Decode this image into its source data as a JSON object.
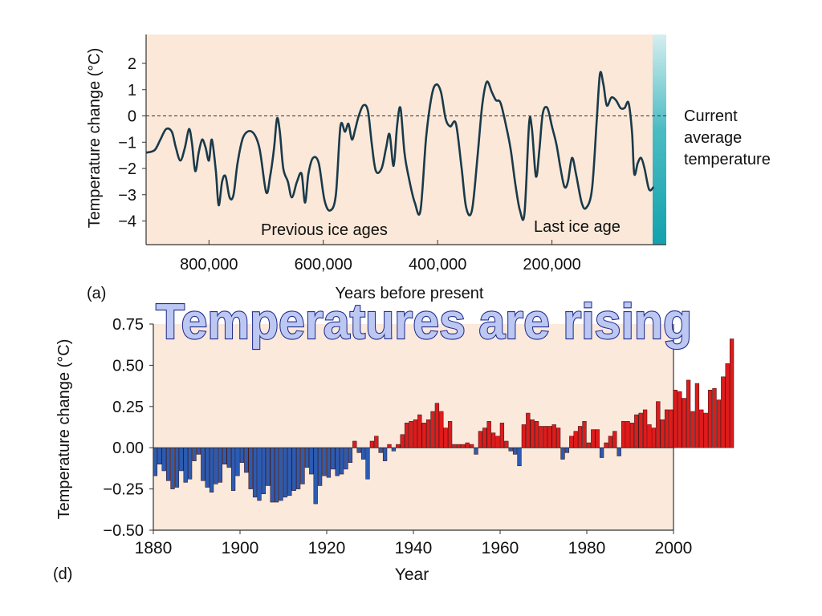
{
  "headline": "Temperatures are rising",
  "colors": {
    "panel_a_bg": "#fbe8d8",
    "panel_d_bg": "#fbe9dc",
    "curve": "#1a3a4a",
    "current_band": "#1fa8b2",
    "warm_bar": "#dd1c1c",
    "cool_bar": "#2d5bb0"
  },
  "chart_data": [
    {
      "type": "line",
      "panel_label": "(a)",
      "xlabel": "Years before present",
      "ylabel": "Temperature change (°C)",
      "xlim": [
        910000,
        0
      ],
      "ylim": [
        -4.9,
        3.1
      ],
      "x_ticks": [
        800000,
        600000,
        400000,
        200000
      ],
      "x_tick_labels": [
        "800,000",
        "600,000",
        "400,000",
        "200,000"
      ],
      "y_ticks": [
        2,
        1,
        0,
        -1,
        -2,
        -3,
        -4
      ],
      "y_tick_labels": [
        "2",
        "1",
        "0",
        "−1",
        "−2",
        "−3",
        "−4"
      ],
      "reference_line": {
        "y": 0,
        "style": "dashed",
        "label": [
          "Current",
          "average",
          "temperature"
        ]
      },
      "annotations": [
        "Previous ice ages",
        "Last ice age"
      ],
      "series": [
        {
          "points": [
            [
              910000,
              -1.4
            ],
            [
              895000,
              -1.3
            ],
            [
              885000,
              -0.9
            ],
            [
              875000,
              -0.5
            ],
            [
              865000,
              -0.6
            ],
            [
              858000,
              -1.2
            ],
            [
              850000,
              -1.7
            ],
            [
              842000,
              -1.2
            ],
            [
              835000,
              -0.5
            ],
            [
              830000,
              -1.0
            ],
            [
              824000,
              -2.1
            ],
            [
              818000,
              -1.4
            ],
            [
              812000,
              -0.9
            ],
            [
              806000,
              -1.2
            ],
            [
              800000,
              -1.7
            ],
            [
              795000,
              -0.9
            ],
            [
              788000,
              -2.1
            ],
            [
              783000,
              -3.4
            ],
            [
              777000,
              -2.5
            ],
            [
              771000,
              -2.3
            ],
            [
              764000,
              -3.1
            ],
            [
              757000,
              -3.0
            ],
            [
              750000,
              -1.8
            ],
            [
              740000,
              -0.8
            ],
            [
              725000,
              -0.6
            ],
            [
              712000,
              -1.2
            ],
            [
              700000,
              -2.9
            ],
            [
              693000,
              -2.3
            ],
            [
              686000,
              -1.2
            ],
            [
              681000,
              -0.1
            ],
            [
              676000,
              -0.6
            ],
            [
              670000,
              -2.0
            ],
            [
              662000,
              -2.5
            ],
            [
              655000,
              -3.1
            ],
            [
              646000,
              -2.5
            ],
            [
              638000,
              -2.2
            ],
            [
              632000,
              -3.3
            ],
            [
              626000,
              -2.2
            ],
            [
              618000,
              -1.6
            ],
            [
              608000,
              -1.8
            ],
            [
              598000,
              -3.2
            ],
            [
              588000,
              -3.6
            ],
            [
              578000,
              -3.0
            ],
            [
              570000,
              -0.4
            ],
            [
              562000,
              -0.6
            ],
            [
              556000,
              -0.3
            ],
            [
              550000,
              -0.9
            ],
            [
              544000,
              -0.5
            ],
            [
              538000,
              0.0
            ],
            [
              530000,
              0.4
            ],
            [
              522000,
              0.2
            ],
            [
              515000,
              -1.1
            ],
            [
              508000,
              -2.1
            ],
            [
              498000,
              -2.0
            ],
            [
              490000,
              -1.2
            ],
            [
              484000,
              -0.7
            ],
            [
              477000,
              -1.9
            ],
            [
              471000,
              -0.4
            ],
            [
              465000,
              0.3
            ],
            [
              458000,
              -1.4
            ],
            [
              450000,
              -2.4
            ],
            [
              440000,
              -3.3
            ],
            [
              430000,
              -3.6
            ],
            [
              420000,
              -0.8
            ],
            [
              410000,
              0.8
            ],
            [
              402000,
              1.2
            ],
            [
              394000,
              0.9
            ],
            [
              386000,
              -0.1
            ],
            [
              378000,
              -0.4
            ],
            [
              368000,
              -0.3
            ],
            [
              358000,
              -2.0
            ],
            [
              350000,
              -3.5
            ],
            [
              340000,
              -3.6
            ],
            [
              330000,
              -1.5
            ],
            [
              322000,
              0.4
            ],
            [
              314000,
              1.3
            ],
            [
              305000,
              0.9
            ],
            [
              298000,
              0.6
            ],
            [
              290000,
              0.5
            ],
            [
              280000,
              -0.4
            ],
            [
              272000,
              -1.3
            ],
            [
              264000,
              -2.6
            ],
            [
              256000,
              -3.6
            ],
            [
              248000,
              -3.7
            ],
            [
              240000,
              -0.3
            ],
            [
              235000,
              -0.5
            ],
            [
              228000,
              -2.3
            ],
            [
              222000,
              -1.3
            ],
            [
              216000,
              0.1
            ],
            [
              208000,
              0.3
            ],
            [
              200000,
              -0.4
            ],
            [
              192000,
              -1.1
            ],
            [
              185000,
              -2.0
            ],
            [
              178000,
              -2.7
            ],
            [
              172000,
              -2.5
            ],
            [
              165000,
              -1.6
            ],
            [
              158000,
              -2.2
            ],
            [
              148000,
              -3.3
            ],
            [
              140000,
              -3.5
            ],
            [
              130000,
              -2.8
            ],
            [
              122000,
              -0.3
            ],
            [
              116000,
              1.6
            ],
            [
              110000,
              1.2
            ],
            [
              104000,
              0.4
            ],
            [
              96000,
              0.7
            ],
            [
              88000,
              0.6
            ],
            [
              80000,
              0.3
            ],
            [
              73000,
              0.3
            ],
            [
              66000,
              0.5
            ],
            [
              60000,
              -0.6
            ],
            [
              56000,
              -2.2
            ],
            [
              50000,
              -1.8
            ],
            [
              44000,
              -1.6
            ],
            [
              38000,
              -2.0
            ],
            [
              30000,
              -2.8
            ],
            [
              22000,
              -2.7
            ]
          ]
        }
      ]
    },
    {
      "type": "bar",
      "panel_label": "(d)",
      "xlabel": "Year",
      "ylabel": "Temperature change (°C)",
      "xlim": [
        1880,
        2000
      ],
      "ylim": [
        -0.5,
        0.75
      ],
      "x_ticks": [
        1880,
        1900,
        1920,
        1940,
        1960,
        1980,
        2000
      ],
      "x_tick_labels": [
        "1880",
        "1900",
        "1920",
        "1940",
        "1960",
        "1980",
        "2000"
      ],
      "y_ticks": [
        0.75,
        0.5,
        0.25,
        0.0,
        -0.25,
        -0.5
      ],
      "y_tick_labels": [
        "0.75",
        "0.50",
        "0.25",
        "0.00",
        "−0.25",
        "−0.50"
      ],
      "start_year": 1880,
      "values": [
        -0.17,
        -0.1,
        -0.14,
        -0.2,
        -0.25,
        -0.24,
        -0.14,
        -0.21,
        -0.19,
        -0.08,
        -0.04,
        -0.2,
        -0.24,
        -0.27,
        -0.22,
        -0.21,
        -0.1,
        -0.12,
        -0.26,
        -0.17,
        -0.09,
        -0.15,
        -0.25,
        -0.3,
        -0.32,
        -0.28,
        -0.23,
        -0.33,
        -0.33,
        -0.32,
        -0.3,
        -0.29,
        -0.26,
        -0.25,
        -0.22,
        -0.12,
        -0.16,
        -0.34,
        -0.23,
        -0.17,
        -0.18,
        -0.13,
        -0.17,
        -0.16,
        -0.13,
        -0.09,
        0.04,
        -0.03,
        -0.07,
        -0.19,
        0.04,
        0.07,
        -0.03,
        -0.08,
        0.02,
        -0.02,
        0.02,
        0.08,
        0.15,
        0.16,
        0.17,
        0.2,
        0.15,
        0.17,
        0.22,
        0.27,
        0.22,
        0.12,
        0.16,
        0.02,
        0.02,
        0.02,
        0.03,
        0.02,
        -0.04,
        0.1,
        0.12,
        0.16,
        0.09,
        0.07,
        0.15,
        0.04,
        -0.02,
        -0.04,
        -0.11,
        0.14,
        0.21,
        0.17,
        0.16,
        0.13,
        0.13,
        0.13,
        0.14,
        0.12,
        -0.07,
        -0.03,
        0.07,
        0.1,
        0.13,
        0.16,
        0.03,
        0.11,
        0.11,
        -0.06,
        0.03,
        0.07,
        0.1,
        -0.05,
        0.16,
        0.16,
        0.15,
        0.2,
        0.21,
        0.23,
        0.14,
        0.12,
        0.28,
        0.17,
        0.23,
        0.23,
        0.35,
        0.34,
        0.3,
        0.41,
        0.22,
        0.39,
        0.23,
        0.21,
        0.35,
        0.36,
        0.29,
        0.43,
        0.51,
        0.66
      ]
    }
  ]
}
